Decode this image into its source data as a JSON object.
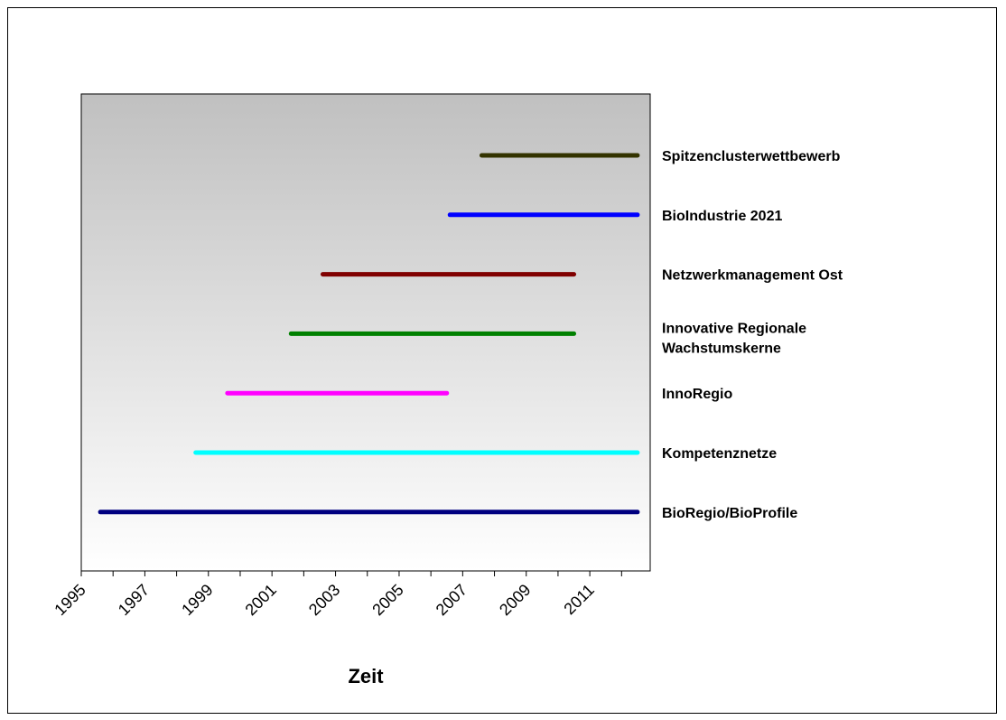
{
  "chart_data": {
    "type": "timeline",
    "xlabel": "Zeit",
    "xlim": [
      1995,
      2012.9
    ],
    "x_ticks": [
      "1995",
      "1997",
      "1999",
      "2001",
      "2003",
      "2005",
      "2007",
      "2009",
      "2011"
    ],
    "grid": false,
    "legend": "none",
    "plot_background": "gradient grey to white",
    "series": [
      {
        "name": "Spitzenclusterwettbewerb",
        "label_lines": [
          "Spitzenclusterwettbewerb"
        ],
        "start": 2007.6,
        "end": 2012.5,
        "color": "#333300"
      },
      {
        "name": "BioIndustrie 2021",
        "label_lines": [
          "BioIndustrie 2021"
        ],
        "start": 2006.6,
        "end": 2012.5,
        "color": "#0000ff"
      },
      {
        "name": "Netzwerkmanagement Ost",
        "label_lines": [
          "Netzwerkmanagement Ost"
        ],
        "start": 2002.6,
        "end": 2010.5,
        "color": "#800000"
      },
      {
        "name": "Innovative Regionale Wachstumskerne",
        "label_lines": [
          "Innovative Regionale",
          "Wachstumskerne"
        ],
        "start": 2001.6,
        "end": 2010.5,
        "color": "#008000"
      },
      {
        "name": "InnoRegio",
        "label_lines": [
          "InnoRegio"
        ],
        "start": 1999.6,
        "end": 2006.5,
        "color": "#ff00ff"
      },
      {
        "name": "Kompetenznetze",
        "label_lines": [
          "Kompetenznetze"
        ],
        "start": 1998.6,
        "end": 2012.5,
        "color": "#00ffff"
      },
      {
        "name": "BioRegio/BioProfile",
        "label_lines": [
          "BioRegio/BioProfile"
        ],
        "start": 1995.6,
        "end": 2012.5,
        "color": "#000080"
      }
    ]
  }
}
